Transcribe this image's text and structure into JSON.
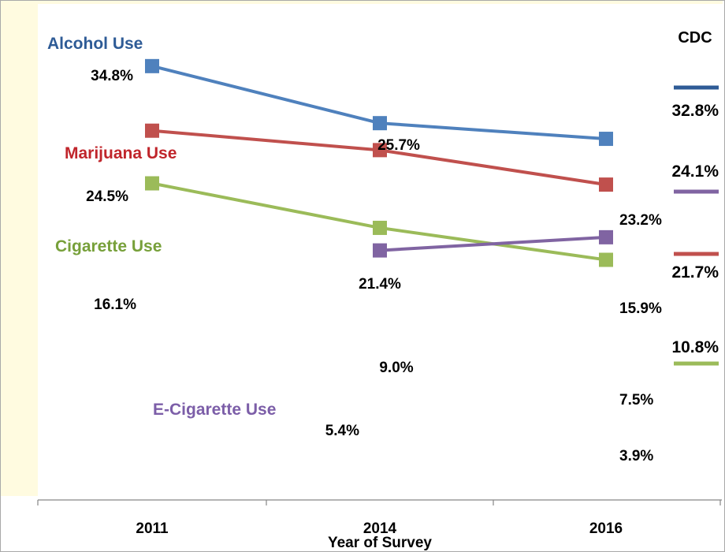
{
  "chart_data": {
    "type": "line",
    "categories": [
      "2011",
      "2014",
      "2016"
    ],
    "xlabel": "Year of Survey",
    "ylabel": "",
    "ylim": [
      0,
      40
    ],
    "grid": false,
    "series": [
      {
        "name": "Alcohol Use",
        "color": "#4f81bd",
        "label_color": "#2e5b96",
        "values": [
          34.8,
          25.7,
          23.2
        ],
        "value_labels": [
          "34.8%",
          "25.7%",
          "23.2%"
        ]
      },
      {
        "name": "Marijuana Use",
        "color": "#c0504d",
        "label_color": "#c0252b",
        "values": [
          24.5,
          21.4,
          15.9
        ],
        "value_labels": [
          "24.5%",
          "21.4%",
          "15.9%"
        ]
      },
      {
        "name": "Cigarette Use",
        "color": "#9bbb59",
        "label_color": "#77a03a",
        "values": [
          16.1,
          9.0,
          3.9
        ],
        "value_labels": [
          "16.1%",
          "9.0%",
          "3.9%"
        ]
      },
      {
        "name": "E-Cigarette Use",
        "color": "#8064a2",
        "label_color": "#7c5ea8",
        "values": [
          null,
          5.4,
          7.5
        ],
        "value_labels": [
          "",
          "5.4%",
          "7.5%"
        ]
      }
    ],
    "cdc_reference": {
      "title": "CDC",
      "items": [
        {
          "value": 32.8,
          "label": "32.8%",
          "color": "#2e5b96"
        },
        {
          "value": 24.1,
          "label": "24.1%",
          "color": "#8064a2"
        },
        {
          "value": 21.7,
          "label": "21.7%",
          "color": "#c0504d"
        },
        {
          "value": 10.8,
          "label": "10.8%",
          "color": "#9bbb59"
        }
      ]
    }
  }
}
